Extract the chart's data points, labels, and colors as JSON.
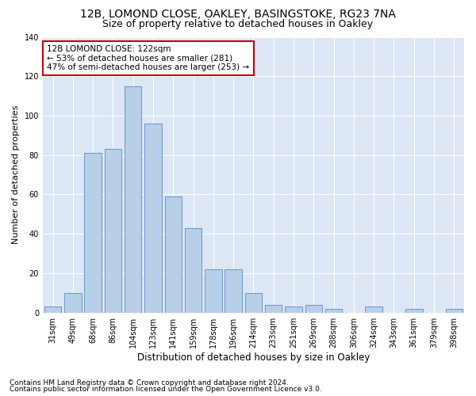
{
  "title1": "12B, LOMOND CLOSE, OAKLEY, BASINGSTOKE, RG23 7NA",
  "title2": "Size of property relative to detached houses in Oakley",
  "xlabel": "Distribution of detached houses by size in Oakley",
  "ylabel": "Number of detached properties",
  "categories": [
    "31sqm",
    "49sqm",
    "68sqm",
    "86sqm",
    "104sqm",
    "123sqm",
    "141sqm",
    "159sqm",
    "178sqm",
    "196sqm",
    "214sqm",
    "233sqm",
    "251sqm",
    "269sqm",
    "288sqm",
    "306sqm",
    "324sqm",
    "343sqm",
    "361sqm",
    "379sqm",
    "398sqm"
  ],
  "values": [
    3,
    10,
    81,
    83,
    115,
    96,
    59,
    43,
    22,
    22,
    10,
    4,
    3,
    4,
    2,
    0,
    3,
    0,
    2,
    0,
    2
  ],
  "bar_color": "#b8cfe8",
  "bar_edge_color": "#5b8cc8",
  "annotation_text": "12B LOMOND CLOSE: 122sqm\n← 53% of detached houses are smaller (281)\n47% of semi-detached houses are larger (253) →",
  "annotation_box_color": "#ffffff",
  "annotation_box_edge_color": "#cc0000",
  "bg_color": "#dce6f5",
  "footnote1": "Contains HM Land Registry data © Crown copyright and database right 2024.",
  "footnote2": "Contains public sector information licensed under the Open Government Licence v3.0.",
  "ylim": [
    0,
    140
  ],
  "yticks": [
    0,
    20,
    40,
    60,
    80,
    100,
    120,
    140
  ],
  "title1_fontsize": 10,
  "title2_fontsize": 9,
  "xlabel_fontsize": 8.5,
  "ylabel_fontsize": 8,
  "tick_fontsize": 7,
  "annot_fontsize": 7.5,
  "footnote_fontsize": 6.5
}
